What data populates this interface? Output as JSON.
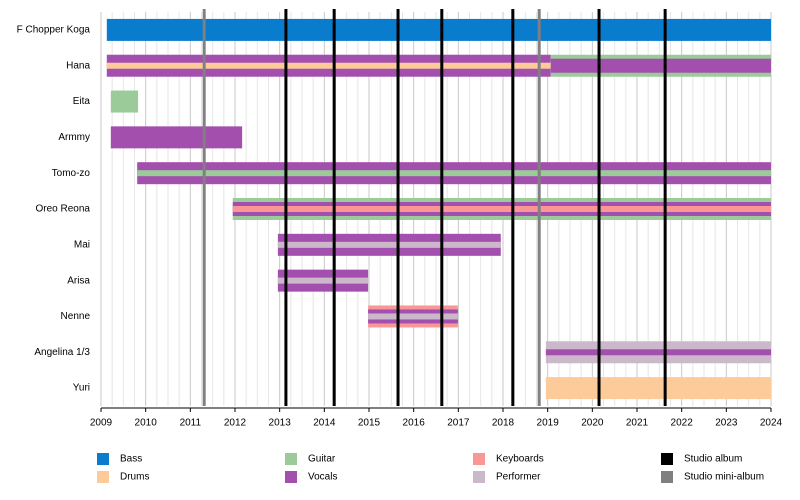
{
  "chart_data": {
    "type": "timeline",
    "xlim": [
      2009,
      2024
    ],
    "xticks": [
      2009,
      2010,
      2011,
      2012,
      2013,
      2014,
      2015,
      2016,
      2017,
      2018,
      2019,
      2020,
      2021,
      2022,
      2023,
      2024
    ],
    "grid": true,
    "roles": [
      {
        "name": "Bass",
        "color": "#0a7ccd"
      },
      {
        "name": "Drums",
        "color": "#fdcb99"
      },
      {
        "name": "Guitar",
        "color": "#9acb98"
      },
      {
        "name": "Vocals",
        "color": "#a34fae"
      },
      {
        "name": "Keyboards",
        "color": "#f99797"
      },
      {
        "name": "Performer",
        "color": "#cbb9cb"
      }
    ],
    "events": [
      {
        "name": "Studio album",
        "color": "#000000",
        "x": [
          2013.14,
          2014.22,
          2015.65,
          2016.63,
          2018.22,
          2020.15,
          2021.63
        ]
      },
      {
        "name": "Studio mini-album",
        "color": "#808080",
        "x": [
          2011.31,
          2018.81
        ]
      }
    ],
    "members": [
      {
        "name": "F Chopper Koga",
        "segments": [
          {
            "role": "Bass",
            "layer": 0,
            "start": 2009.13,
            "end": 2024
          }
        ]
      },
      {
        "name": "Hana",
        "segments": [
          {
            "role": "Vocals",
            "layer": 0,
            "start": 2009.13,
            "end": 2019.07
          },
          {
            "role": "Drums",
            "layer": 2,
            "start": 2009.13,
            "end": 2019.07
          },
          {
            "role": "Guitar",
            "layer": 0,
            "start": 2019.07,
            "end": 2024
          },
          {
            "role": "Vocals",
            "layer": 1,
            "start": 2019.07,
            "end": 2024
          }
        ]
      },
      {
        "name": "Eita",
        "segments": [
          {
            "role": "Guitar",
            "layer": 0,
            "start": 2009.22,
            "end": 2009.83
          }
        ]
      },
      {
        "name": "Armmy",
        "segments": [
          {
            "role": "Vocals",
            "layer": 0,
            "start": 2009.22,
            "end": 2012.16
          }
        ]
      },
      {
        "name": "Tomo-zo",
        "segments": [
          {
            "role": "Vocals",
            "layer": 0,
            "start": 2009.81,
            "end": 2024
          },
          {
            "role": "Guitar",
            "layer": 2,
            "start": 2009.81,
            "end": 2024
          }
        ]
      },
      {
        "name": "Oreo Reona",
        "segments": [
          {
            "role": "Guitar",
            "layer": 0,
            "start": 2011.95,
            "end": 2024
          },
          {
            "role": "Vocals",
            "layer": 1,
            "start": 2011.95,
            "end": 2024
          },
          {
            "role": "Keyboards",
            "layer": 2,
            "start": 2011.95,
            "end": 2024
          }
        ]
      },
      {
        "name": "Mai",
        "segments": [
          {
            "role": "Vocals",
            "layer": 0,
            "start": 2012.96,
            "end": 2017.95
          },
          {
            "role": "Performer",
            "layer": 2,
            "start": 2012.96,
            "end": 2017.95
          }
        ]
      },
      {
        "name": "Arisa",
        "segments": [
          {
            "role": "Vocals",
            "layer": 0,
            "start": 2012.96,
            "end": 2014.98
          },
          {
            "role": "Performer",
            "layer": 2,
            "start": 2012.96,
            "end": 2014.98
          }
        ]
      },
      {
        "name": "Nenne",
        "segments": [
          {
            "role": "Keyboards",
            "layer": 0,
            "start": 2014.98,
            "end": 2016.99
          },
          {
            "role": "Vocals",
            "layer": 1,
            "start": 2014.98,
            "end": 2016.99
          },
          {
            "role": "Performer",
            "layer": 2,
            "start": 2014.98,
            "end": 2016.99
          }
        ]
      },
      {
        "name": "Angelina 1/3",
        "segments": [
          {
            "role": "Performer",
            "layer": 0,
            "start": 2018.96,
            "end": 2024
          },
          {
            "role": "Vocals",
            "layer": 2,
            "start": 2018.96,
            "end": 2024
          }
        ]
      },
      {
        "name": "Yuri",
        "segments": [
          {
            "role": "Drums",
            "layer": 0,
            "start": 2018.96,
            "end": 2024
          }
        ]
      }
    ]
  }
}
